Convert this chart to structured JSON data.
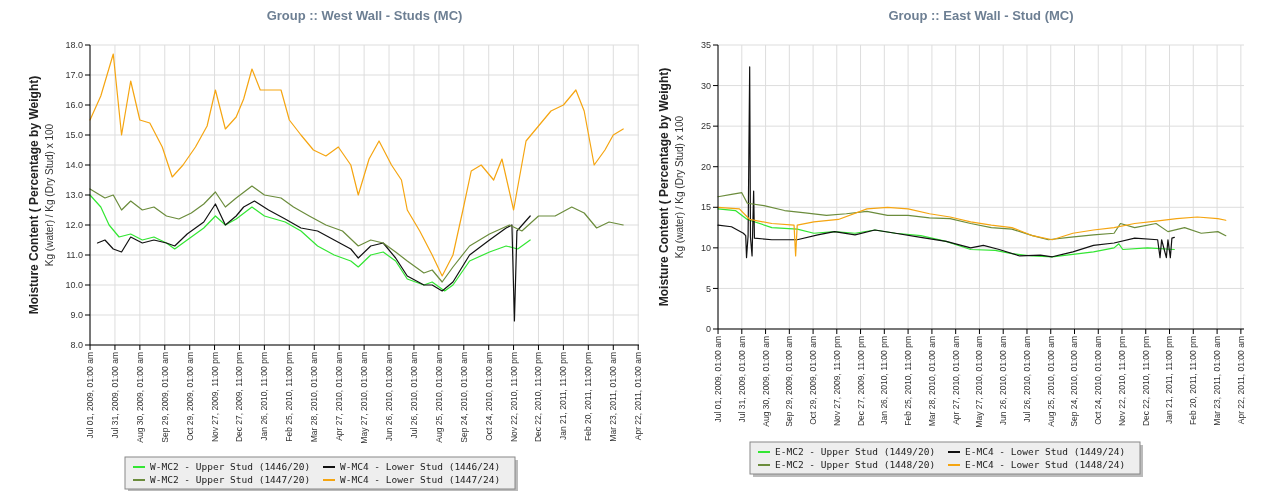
{
  "chart_data": [
    {
      "type": "line",
      "title": "Group :: West Wall - Studs (MC)",
      "ylabel": "Moisture Content ( Percentage by Weight)",
      "annotations": [
        "Kg (water) / Kg (Dry Stud) x 100"
      ],
      "grid": true,
      "legend": "bottom",
      "marker": "none",
      "line_style": "solid",
      "xlim": [
        "2009-07-01",
        "2011-04-23"
      ],
      "ylim": [
        8,
        18
      ],
      "yticks": [
        {
          "value": 8,
          "label": "8.0"
        },
        {
          "value": 9,
          "label": "9.0"
        },
        {
          "value": 10,
          "label": "10.0"
        },
        {
          "value": 11,
          "label": "11.0"
        },
        {
          "value": 12,
          "label": "12.0"
        },
        {
          "value": 13,
          "label": "13.0"
        },
        {
          "value": 14,
          "label": "14.0"
        },
        {
          "value": 15,
          "label": "15.0"
        },
        {
          "value": 16,
          "label": "16.0"
        },
        {
          "value": 17,
          "label": "17.0"
        },
        {
          "value": 18,
          "label": "18.0"
        }
      ],
      "xticks": [
        {
          "value": "2009-07-01T01:00",
          "label": "Jul 01, 2009, 01:00 am"
        },
        {
          "value": "2009-07-31T01:00",
          "label": "Jul 31, 2009, 01:00 am"
        },
        {
          "value": "2009-08-30T01:00",
          "label": "Aug 30, 2009, 01:00 am"
        },
        {
          "value": "2009-09-29T01:00",
          "label": "Sep 29, 2009, 01:00 am"
        },
        {
          "value": "2009-10-29T01:00",
          "label": "Oct 29, 2009, 01:00 am"
        },
        {
          "value": "2009-11-27T23:00",
          "label": "Nov 27, 2009, 11:00 pm"
        },
        {
          "value": "2009-12-27T23:00",
          "label": "Dec 27, 2009, 11:00 pm"
        },
        {
          "value": "2010-01-26T23:00",
          "label": "Jan 26, 2010, 11:00 pm"
        },
        {
          "value": "2010-02-25T23:00",
          "label": "Feb 25, 2010, 11:00 pm"
        },
        {
          "value": "2010-03-28T01:00",
          "label": "Mar 28, 2010, 01:00 am"
        },
        {
          "value": "2010-04-27T01:00",
          "label": "Apr 27, 2010, 01:00 am"
        },
        {
          "value": "2010-05-27T01:00",
          "label": "May 27, 2010, 01:00 am"
        },
        {
          "value": "2010-06-26T01:00",
          "label": "Jun 26, 2010, 01:00 am"
        },
        {
          "value": "2010-07-26T01:00",
          "label": "Jul 26, 2010, 01:00 am"
        },
        {
          "value": "2010-08-25T01:00",
          "label": "Aug 25, 2010, 01:00 am"
        },
        {
          "value": "2010-09-24T01:00",
          "label": "Sep 24, 2010, 01:00 am"
        },
        {
          "value": "2010-10-24T01:00",
          "label": "Oct 24, 2010, 01:00 am"
        },
        {
          "value": "2010-11-22T23:00",
          "label": "Nov 22, 2010, 11:00 pm"
        },
        {
          "value": "2010-12-22T23:00",
          "label": "Dec 22, 2010, 11:00 pm"
        },
        {
          "value": "2011-01-21T23:00",
          "label": "Jan 21, 2011, 11:00 pm"
        },
        {
          "value": "2011-02-20T23:00",
          "label": "Feb 20, 2011, 11:00 pm"
        },
        {
          "value": "2011-03-23T01:00",
          "label": "Mar 23, 2011, 01:00 am"
        },
        {
          "value": "2011-04-22T01:00",
          "label": "Apr 22, 2011, 01:00 am"
        }
      ],
      "series": [
        {
          "name": "W-MC2 - Upper Stud (1446/20)",
          "color": "#33e633",
          "x": [
            "2009-07-01",
            "2009-07-14",
            "2009-07-24",
            "2009-08-05",
            "2009-08-19",
            "2009-09-02",
            "2009-09-16",
            "2009-10-01",
            "2009-10-11",
            "2009-10-26",
            "2009-11-15",
            "2009-11-29",
            "2009-12-11",
            "2009-12-24",
            "2010-01-12",
            "2010-01-27",
            "2010-02-21",
            "2010-03-12",
            "2010-04-01",
            "2010-04-21",
            "2010-05-11",
            "2010-05-20",
            "2010-06-04",
            "2010-06-19",
            "2010-07-04",
            "2010-07-18",
            "2010-08-07",
            "2010-08-17",
            "2010-09-01",
            "2010-09-11",
            "2010-10-01",
            "2010-10-25",
            "2010-11-14",
            "2010-11-28",
            "2010-12-13"
          ],
          "values": [
            13.0,
            12.6,
            12.0,
            11.6,
            11.7,
            11.5,
            11.6,
            11.4,
            11.2,
            11.5,
            11.9,
            12.3,
            12.0,
            12.2,
            12.6,
            12.3,
            12.1,
            11.8,
            11.3,
            11.0,
            10.8,
            10.6,
            11.0,
            11.1,
            10.8,
            10.2,
            10.0,
            10.1,
            9.8,
            10.0,
            10.8,
            11.1,
            11.3,
            11.2,
            11.5
          ]
        },
        {
          "name": "W-MC4 - Lower Stud (1446/24)",
          "color": "#111111",
          "x": [
            "2009-07-10",
            "2009-07-19",
            "2009-07-29",
            "2009-08-08",
            "2009-08-19",
            "2009-09-02",
            "2009-09-16",
            "2009-10-01",
            "2009-10-11",
            "2009-10-26",
            "2009-11-15",
            "2009-11-29",
            "2009-12-11",
            "2009-12-24",
            "2010-01-02",
            "2010-01-15",
            "2010-02-01",
            "2010-02-21",
            "2010-03-12",
            "2010-04-01",
            "2010-04-21",
            "2010-05-11",
            "2010-05-20",
            "2010-06-04",
            "2010-06-19",
            "2010-07-04",
            "2010-07-18",
            "2010-08-07",
            "2010-08-17",
            "2010-08-29",
            "2010-09-11",
            "2010-10-01",
            "2010-10-25",
            "2010-11-14",
            "2010-11-21",
            "2010-11-24",
            "2010-11-27",
            "2010-12-13"
          ],
          "values": [
            11.4,
            11.5,
            11.2,
            11.1,
            11.6,
            11.4,
            11.5,
            11.4,
            11.3,
            11.7,
            12.1,
            12.7,
            12.0,
            12.3,
            12.6,
            12.8,
            12.5,
            12.2,
            11.9,
            11.8,
            11.5,
            11.2,
            10.9,
            11.3,
            11.4,
            10.9,
            10.3,
            10.0,
            10.0,
            9.8,
            10.1,
            11.0,
            11.5,
            11.9,
            12.0,
            8.8,
            11.8,
            12.3
          ]
        },
        {
          "name": "W-MC2 - Upper Stud (1447/20)",
          "color": "#6b8c3c",
          "x": [
            "2009-07-01",
            "2009-07-19",
            "2009-07-29",
            "2009-08-08",
            "2009-08-19",
            "2009-09-02",
            "2009-09-16",
            "2009-10-01",
            "2009-10-16",
            "2009-10-31",
            "2009-11-15",
            "2009-11-29",
            "2009-12-11",
            "2009-12-24",
            "2010-01-12",
            "2010-01-27",
            "2010-02-16",
            "2010-03-03",
            "2010-03-22",
            "2010-04-11",
            "2010-05-01",
            "2010-05-20",
            "2010-06-04",
            "2010-06-19",
            "2010-07-04",
            "2010-07-18",
            "2010-08-07",
            "2010-08-17",
            "2010-08-29",
            "2010-09-11",
            "2010-10-01",
            "2010-10-25",
            "2010-11-18",
            "2010-12-03",
            "2010-12-23",
            "2011-01-12",
            "2011-02-01",
            "2011-02-16",
            "2011-03-03",
            "2011-03-18",
            "2011-04-04"
          ],
          "values": [
            13.2,
            12.9,
            13.0,
            12.5,
            12.8,
            12.5,
            12.6,
            12.3,
            12.2,
            12.4,
            12.7,
            13.1,
            12.6,
            12.9,
            13.3,
            13.0,
            12.9,
            12.6,
            12.3,
            12.0,
            11.8,
            11.3,
            11.5,
            11.4,
            11.1,
            10.8,
            10.4,
            10.5,
            10.1,
            10.6,
            11.3,
            11.7,
            12.0,
            11.8,
            12.3,
            12.3,
            12.6,
            12.4,
            11.9,
            12.1,
            12.0
          ]
        },
        {
          "name": "W-MC4 - Lower Stud (1447/24)",
          "color": "#f5a511",
          "x": [
            "2009-07-01",
            "2009-07-14",
            "2009-07-29",
            "2009-08-08",
            "2009-08-19",
            "2009-08-30",
            "2009-09-11",
            "2009-09-26",
            "2009-10-08",
            "2009-10-21",
            "2009-11-05",
            "2009-11-19",
            "2009-11-29",
            "2009-12-11",
            "2009-12-24",
            "2010-01-02",
            "2010-01-12",
            "2010-01-22",
            "2010-02-06",
            "2010-02-16",
            "2010-02-26",
            "2010-03-12",
            "2010-03-27",
            "2010-04-11",
            "2010-04-26",
            "2010-05-11",
            "2010-05-20",
            "2010-06-02",
            "2010-06-14",
            "2010-06-29",
            "2010-07-11",
            "2010-07-18",
            "2010-08-02",
            "2010-08-17",
            "2010-08-29",
            "2010-09-11",
            "2010-09-23",
            "2010-10-03",
            "2010-10-15",
            "2010-10-30",
            "2010-11-09",
            "2010-11-23",
            "2010-12-08",
            "2010-12-23",
            "2011-01-07",
            "2011-01-22",
            "2011-02-06",
            "2011-02-16",
            "2011-02-28",
            "2011-03-13",
            "2011-03-23",
            "2011-04-04"
          ],
          "values": [
            15.5,
            16.3,
            17.7,
            15.0,
            16.8,
            15.5,
            15.4,
            14.6,
            13.6,
            14.0,
            14.6,
            15.3,
            16.5,
            15.2,
            15.6,
            16.2,
            17.2,
            16.5,
            16.5,
            16.5,
            15.5,
            15.0,
            14.5,
            14.3,
            14.6,
            14.0,
            13.0,
            14.2,
            14.8,
            14.0,
            13.5,
            12.5,
            11.8,
            11.0,
            10.3,
            11.0,
            12.5,
            13.8,
            14.0,
            13.5,
            14.2,
            12.5,
            14.8,
            15.3,
            15.8,
            16.0,
            16.5,
            15.8,
            14.0,
            14.5,
            15.0,
            15.2
          ]
        }
      ]
    },
    {
      "type": "line",
      "title": "Group :: East Wall - Stud (MC)",
      "ylabel": "Moisture Content ( Percentage by Weight)",
      "annotations": [
        "Kg (water) / Kg (Dry Stud) x 100"
      ],
      "grid": true,
      "legend": "bottom",
      "marker": "none",
      "line_style": "solid",
      "xlim": [
        "2009-07-01",
        "2011-04-26"
      ],
      "ylim": [
        0,
        35
      ],
      "yticks": [
        0,
        5,
        10,
        15,
        20,
        25,
        30,
        35
      ],
      "xticks": [
        {
          "value": "2009-07-01T01:00",
          "label": "Jul 01, 2009, 01:00 am"
        },
        {
          "value": "2009-07-31T01:00",
          "label": "Jul 31, 2009, 01:00 am"
        },
        {
          "value": "2009-08-30T01:00",
          "label": "Aug 30, 2009, 01:00 am"
        },
        {
          "value": "2009-09-29T01:00",
          "label": "Sep 29, 2009, 01:00 am"
        },
        {
          "value": "2009-10-29T01:00",
          "label": "Oct 29, 2009, 01:00 am"
        },
        {
          "value": "2009-11-27T23:00",
          "label": "Nov 27, 2009, 11:00 pm"
        },
        {
          "value": "2009-12-27T23:00",
          "label": "Dec 27, 2009, 11:00 pm"
        },
        {
          "value": "2010-01-26T23:00",
          "label": "Jan 26, 2010, 11:00 pm"
        },
        {
          "value": "2010-02-25T23:00",
          "label": "Feb 25, 2010, 11:00 pm"
        },
        {
          "value": "2010-03-28T01:00",
          "label": "Mar 28, 2010, 01:00 am"
        },
        {
          "value": "2010-04-27T01:00",
          "label": "Apr 27, 2010, 01:00 am"
        },
        {
          "value": "2010-05-27T01:00",
          "label": "May 27, 2010, 01:00 am"
        },
        {
          "value": "2010-06-26T01:00",
          "label": "Jun 26, 2010, 01:00 am"
        },
        {
          "value": "2010-07-26T01:00",
          "label": "Jul 26, 2010, 01:00 am"
        },
        {
          "value": "2010-08-25T01:00",
          "label": "Aug 25, 2010, 01:00 am"
        },
        {
          "value": "2010-09-24T01:00",
          "label": "Sep 24, 2010, 01:00 am"
        },
        {
          "value": "2010-10-24T01:00",
          "label": "Oct 24, 2010, 01:00 am"
        },
        {
          "value": "2010-11-22T23:00",
          "label": "Nov 22, 2010, 11:00 pm"
        },
        {
          "value": "2010-12-22T23:00",
          "label": "Dec 22, 2010, 11:00 pm"
        },
        {
          "value": "2011-01-21T23:00",
          "label": "Jan 21, 2011, 11:00 pm"
        },
        {
          "value": "2011-02-20T23:00",
          "label": "Feb 20, 2011, 11:00 pm"
        },
        {
          "value": "2011-03-23T01:00",
          "label": "Mar 23, 2011, 01:00 am"
        },
        {
          "value": "2011-04-22T01:00",
          "label": "Apr 22, 2011, 01:00 am"
        }
      ],
      "series": [
        {
          "name": "E-MC2 - Upper Stud (1449/20)",
          "color": "#33e633",
          "x": [
            "2009-07-01",
            "2009-07-23",
            "2009-08-07",
            "2009-09-07",
            "2009-10-09",
            "2009-10-30",
            "2009-11-25",
            "2009-12-21",
            "2010-01-15",
            "2010-02-10",
            "2010-03-14",
            "2010-04-15",
            "2010-05-16",
            "2010-06-16",
            "2010-07-07",
            "2010-08-02",
            "2010-08-27",
            "2010-09-22",
            "2010-10-18",
            "2010-11-13",
            "2010-11-19",
            "2010-11-24",
            "2010-12-25",
            "2011-01-28"
          ],
          "values": [
            14.8,
            14.6,
            13.5,
            12.5,
            12.3,
            11.8,
            12.0,
            11.8,
            12.2,
            11.8,
            11.5,
            10.8,
            9.8,
            9.7,
            9.3,
            9.0,
            8.9,
            9.2,
            9.5,
            10.0,
            10.5,
            9.8,
            10.0,
            9.8
          ]
        },
        {
          "name": "E-MC4 - Lower Stud (1449/24)",
          "color": "#111111",
          "x": [
            "2009-07-01",
            "2009-07-18",
            "2009-08-02",
            "2009-08-05",
            "2009-08-06",
            "2009-08-08",
            "2009-08-10",
            "2009-08-11",
            "2009-08-13",
            "2009-08-15",
            "2009-08-16",
            "2009-09-07",
            "2009-10-09",
            "2009-11-04",
            "2009-11-25",
            "2009-12-21",
            "2010-01-15",
            "2010-02-10",
            "2010-03-14",
            "2010-04-15",
            "2010-05-16",
            "2010-06-01",
            "2010-06-21",
            "2010-07-17",
            "2010-08-12",
            "2010-08-27",
            "2010-09-22",
            "2010-10-18",
            "2010-11-13",
            "2010-12-09",
            "2011-01-07",
            "2011-01-10",
            "2011-01-12",
            "2011-01-18",
            "2011-01-20",
            "2011-01-23",
            "2011-01-25",
            "2011-01-28"
          ],
          "values": [
            12.8,
            12.6,
            11.8,
            11.5,
            8.8,
            11.5,
            32.3,
            11.3,
            9.0,
            17.0,
            11.2,
            11.0,
            11.0,
            11.6,
            12.0,
            11.6,
            12.2,
            11.8,
            11.3,
            10.8,
            10.0,
            10.3,
            9.8,
            9.0,
            9.1,
            8.9,
            9.5,
            10.3,
            10.6,
            11.2,
            11.0,
            8.8,
            11.0,
            8.8,
            11.0,
            8.8,
            11.2,
            11.3
          ]
        },
        {
          "name": "E-MC2 - Upper Stud (1448/20)",
          "color": "#6b8c3c",
          "x": [
            "2009-07-01",
            "2009-07-18",
            "2009-07-31",
            "2009-08-07",
            "2009-08-28",
            "2009-09-23",
            "2009-10-19",
            "2009-11-15",
            "2009-12-10",
            "2010-01-05",
            "2010-01-31",
            "2010-02-26",
            "2010-03-25",
            "2010-04-20",
            "2010-05-16",
            "2010-06-11",
            "2010-07-07",
            "2010-08-02",
            "2010-08-22",
            "2010-09-17",
            "2010-10-18",
            "2010-11-13",
            "2010-11-21",
            "2010-12-09",
            "2011-01-05",
            "2011-01-20",
            "2011-02-10",
            "2011-03-03",
            "2011-03-24",
            "2011-04-03"
          ],
          "values": [
            16.3,
            16.6,
            16.8,
            15.5,
            15.2,
            14.6,
            14.3,
            14.0,
            14.2,
            14.5,
            14.0,
            14.0,
            13.7,
            13.6,
            13.0,
            12.5,
            12.3,
            11.5,
            11.0,
            11.3,
            11.6,
            11.8,
            13.0,
            12.5,
            13.0,
            12.0,
            12.5,
            11.8,
            12.0,
            11.5
          ]
        },
        {
          "name": "E-MC4 - Lower Stud (1448/24)",
          "color": "#f5a511",
          "x": [
            "2009-07-01",
            "2009-07-28",
            "2009-08-10",
            "2009-09-07",
            "2009-10-05",
            "2009-10-07",
            "2009-10-09",
            "2009-10-30",
            "2009-11-30",
            "2010-01-05",
            "2010-01-31",
            "2010-02-26",
            "2010-03-25",
            "2010-04-20",
            "2010-05-16",
            "2010-06-11",
            "2010-07-07",
            "2010-08-02",
            "2010-08-27",
            "2010-09-22",
            "2010-10-18",
            "2010-11-13",
            "2010-12-09",
            "2011-01-05",
            "2011-01-31",
            "2011-02-26",
            "2011-03-24",
            "2011-04-03"
          ],
          "values": [
            15.0,
            14.8,
            13.5,
            13.0,
            12.8,
            9.0,
            12.8,
            13.2,
            13.5,
            14.8,
            15.0,
            14.8,
            14.2,
            13.8,
            13.2,
            12.8,
            12.5,
            11.5,
            11.0,
            11.8,
            12.2,
            12.5,
            13.0,
            13.3,
            13.6,
            13.8,
            13.6,
            13.4
          ]
        }
      ]
    }
  ]
}
